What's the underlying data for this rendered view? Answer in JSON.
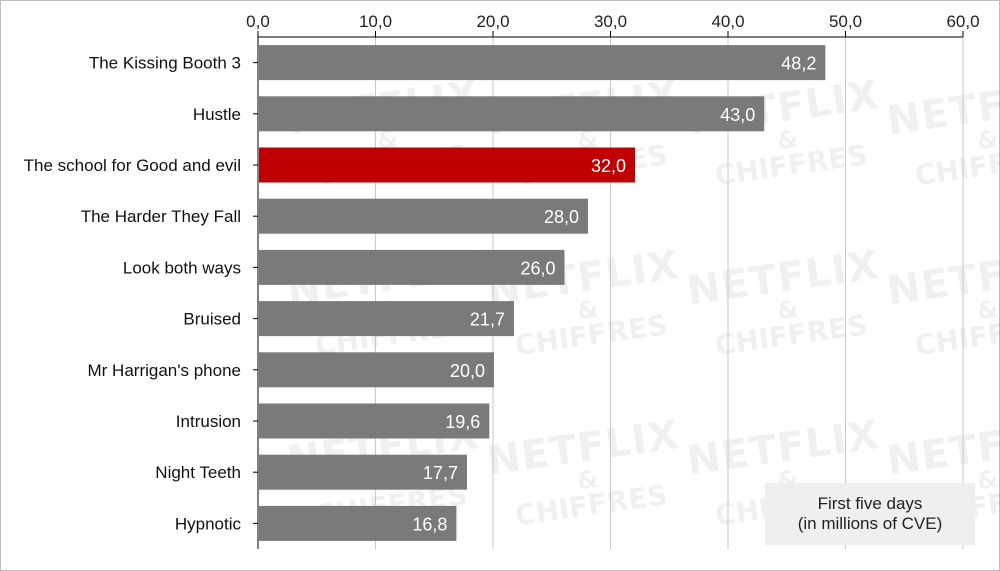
{
  "watermark": {
    "line1": "NETFLIX",
    "line2": "&",
    "line3": "CHIFFRES"
  },
  "note": {
    "line1": "First five days",
    "line2": "(in millions of CVE)"
  },
  "colors": {
    "default_bar": "#7a7a7a",
    "highlight_bar": "#c00000",
    "grid": "#c8c8c8",
    "axis": "#000000"
  },
  "chart_data": {
    "type": "bar",
    "orientation": "horizontal",
    "categories": [
      "The Kissing Booth 3",
      "Hustle",
      "The school for Good and evil",
      "The Harder They Fall",
      "Look both ways",
      "Bruised",
      "Mr Harrigan's phone",
      "Intrusion",
      "Night Teeth",
      "Hypnotic"
    ],
    "values": [
      48.2,
      43.0,
      32.0,
      28.0,
      26.0,
      21.7,
      20.0,
      19.6,
      17.7,
      16.8
    ],
    "value_labels": [
      "48,2",
      "43,0",
      "32,0",
      "28,0",
      "26,0",
      "21,7",
      "20,0",
      "19,6",
      "17,7",
      "16,8"
    ],
    "highlight_index": 2,
    "xlim": [
      0,
      60
    ],
    "xticks": [
      0,
      10,
      20,
      30,
      40,
      50,
      60
    ],
    "xtick_labels": [
      "0,0",
      "10,0",
      "20,0",
      "30,0",
      "40,0",
      "50,0",
      "60,0"
    ],
    "x_axis_position": "top",
    "grid": true,
    "legend": "none"
  }
}
